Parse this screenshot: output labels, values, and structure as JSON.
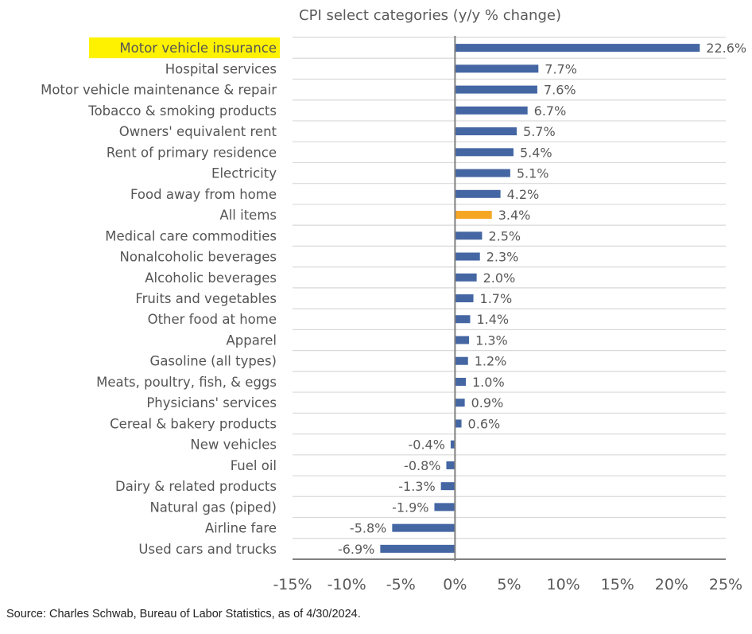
{
  "chart_data": {
    "type": "bar",
    "orientation": "horizontal",
    "title": "CPI select categories (y/y % change)",
    "xlabel": "",
    "ylabel": "",
    "xlim": [
      -15,
      25
    ],
    "xticks": [
      -15,
      -10,
      -5,
      0,
      5,
      10,
      15,
      20,
      25
    ],
    "xtick_labels": [
      "-15%",
      "-10%",
      "-5%",
      "0%",
      "5%",
      "10%",
      "15%",
      "20%",
      "25%"
    ],
    "grid": "horizontal row separators",
    "categories": [
      "Motor vehicle insurance",
      "Hospital services",
      "Motor vehicle maintenance & repair",
      "Tobacco & smoking products",
      "Owners' equivalent rent",
      "Rent of primary residence",
      "Electricity",
      "Food away from home",
      "All items",
      "Medical care commodities",
      "Nonalcoholic beverages",
      "Alcoholic beverages",
      "Fruits and vegetables",
      "Other food at home",
      "Apparel",
      "Gasoline (all types)",
      "Meats, poultry, fish, & eggs",
      "Physicians' services",
      "Cereal & bakery products",
      "New vehicles",
      "Fuel oil",
      "Dairy & related products",
      "Natural gas (piped)",
      "Airline fare",
      "Used cars and trucks"
    ],
    "values": [
      22.6,
      7.7,
      7.6,
      6.7,
      5.7,
      5.4,
      5.1,
      4.2,
      3.4,
      2.5,
      2.3,
      2.0,
      1.7,
      1.4,
      1.3,
      1.2,
      1.0,
      0.9,
      0.6,
      -0.4,
      -0.8,
      -1.3,
      -1.9,
      -5.8,
      -6.9
    ],
    "value_labels": [
      "22.6%",
      "7.7%",
      "7.6%",
      "6.7%",
      "5.7%",
      "5.4%",
      "5.1%",
      "4.2%",
      "3.4%",
      "2.5%",
      "2.3%",
      "2.0%",
      "1.7%",
      "1.4%",
      "1.3%",
      "1.2%",
      "1.0%",
      "0.9%",
      "0.6%",
      "-0.4%",
      "-0.8%",
      "-1.3%",
      "-1.9%",
      "-5.8%",
      "-6.9%"
    ],
    "highlighted_category": "Motor vehicle insurance",
    "emphasized_bar": "All items",
    "colors": {
      "bar": "#4466a3",
      "emphasized_bar": "#f5a623",
      "highlight": "#fff200",
      "gridline": "#d9d9d9",
      "axis": "#808080"
    }
  },
  "source": "Source: Charles Schwab, Bureau of Labor Statistics, as of 4/30/2024."
}
